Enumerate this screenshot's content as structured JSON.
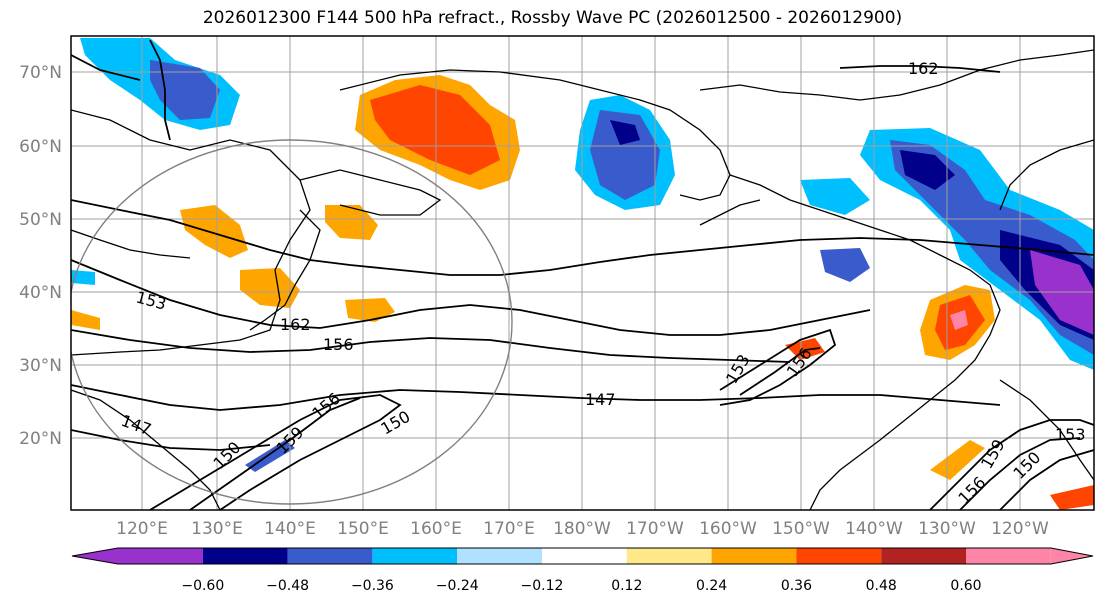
{
  "title": "2026012300 F144 500 hPa refract., Rossby Wave PC (2026012500 - 2026012900)",
  "lat_labels": [
    "70°N",
    "60°N",
    "50°N",
    "40°N",
    "30°N",
    "20°N"
  ],
  "lon_labels": [
    "120°E",
    "130°E",
    "140°E",
    "150°E",
    "160°E",
    "170°E",
    "180°W",
    "170°W",
    "160°W",
    "150°W",
    "140°W",
    "130°W",
    "120°W"
  ],
  "contour_labels": [
    "162",
    "156",
    "147",
    "153",
    "150",
    "159",
    "156",
    "153",
    "150",
    "156",
    "159",
    "147",
    "162",
    "156",
    "150",
    "153"
  ],
  "colorbar": {
    "ticks": [
      "−0.60",
      "−0.48",
      "−0.36",
      "−0.24",
      "−0.12",
      "0.12",
      "0.24",
      "0.36",
      "0.48",
      "0.60"
    ],
    "colors": [
      "#9932cc",
      "#00008b",
      "#3a5bcc",
      "#00bfff",
      "#b0e2ff",
      "#ffffff",
      "#ffe88a",
      "#ffa500",
      "#ff4500",
      "#b22222",
      "#ff85a8",
      "#ff85a8"
    ]
  },
  "colors": {
    "frame": "#000000",
    "grid": "#a0a0a0",
    "axis_label": "#808080"
  }
}
